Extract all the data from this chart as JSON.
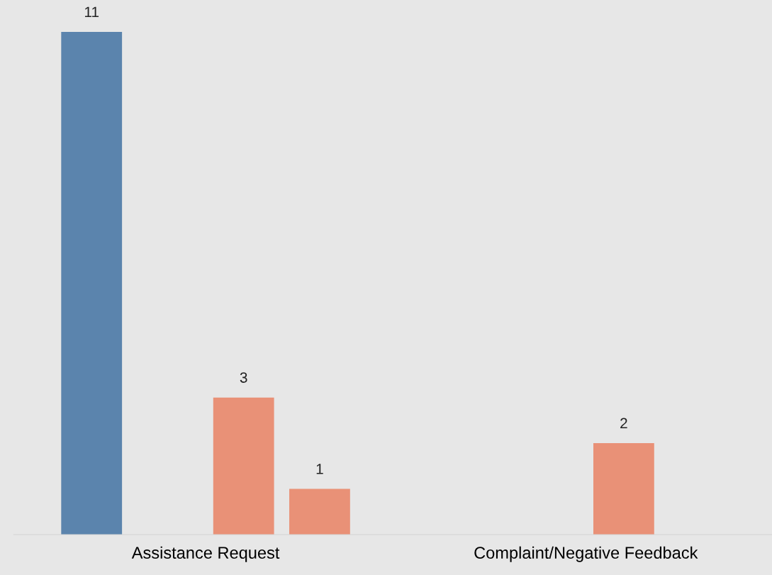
{
  "chart_data": {
    "type": "bar",
    "categories": [
      "Assistance Request",
      "Complaint/Negative Feedback"
    ],
    "series": [
      {
        "color": "#5b84ad",
        "values": [
          11,
          null
        ]
      },
      {
        "values": [
          null,
          null
        ]
      },
      {
        "color": "#e99177",
        "values": [
          3,
          2
        ]
      },
      {
        "color": "#e99177",
        "values": [
          1,
          null
        ]
      }
    ],
    "ylim": [
      0,
      11.7
    ],
    "data_labels": true,
    "tick_labels": "x",
    "grid": false,
    "legend": false
  }
}
